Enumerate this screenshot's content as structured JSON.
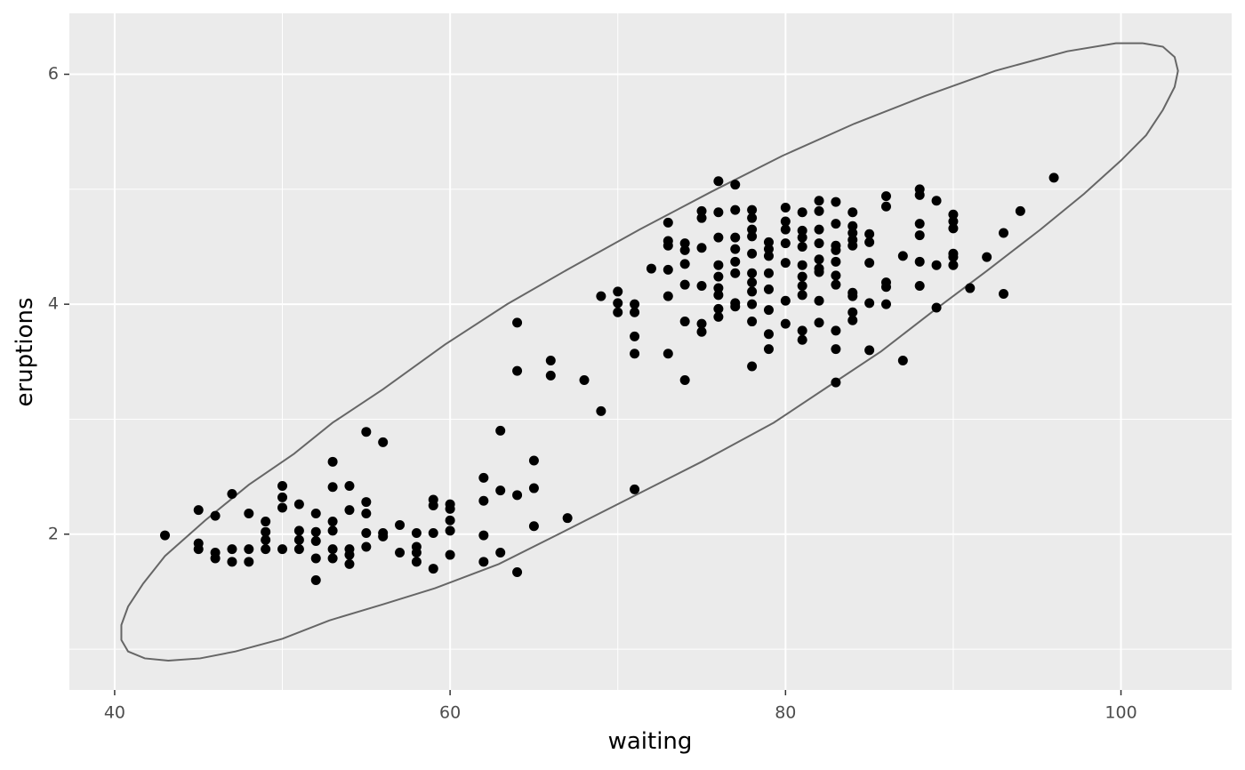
{
  "chart_data": {
    "type": "scatter",
    "x_label": "waiting",
    "y_label": "eruptions",
    "xlim": [
      37.3,
      106.6
    ],
    "ylim": [
      0.645,
      6.53
    ],
    "xticks": [
      40,
      60,
      80,
      100
    ],
    "yticks": [
      2,
      4,
      6
    ],
    "minor_xticks": [
      50,
      70,
      90
    ],
    "minor_yticks": [
      1,
      3,
      5
    ],
    "grid": true,
    "color": "#000000",
    "x": [
      43,
      45,
      45,
      45,
      46,
      46,
      46,
      47,
      47,
      47,
      48,
      48,
      48,
      49,
      49,
      49,
      49,
      50,
      50,
      50,
      50,
      51,
      51,
      51,
      51,
      52,
      52,
      52,
      52,
      52,
      53,
      53,
      53,
      53,
      53,
      53,
      54,
      54,
      54,
      54,
      54,
      55,
      55,
      55,
      55,
      55,
      56,
      56,
      56,
      57,
      57,
      58,
      58,
      58,
      58,
      59,
      59,
      59,
      59,
      60,
      60,
      60,
      60,
      60,
      62,
      62,
      62,
      62,
      63,
      63,
      63,
      64,
      64,
      64,
      64,
      65,
      65,
      65,
      66,
      66,
      67,
      68,
      69,
      69,
      70,
      70,
      70,
      71,
      71,
      71,
      71,
      71,
      72,
      73,
      73,
      73,
      73,
      73,
      73,
      74,
      74,
      74,
      74,
      74,
      74,
      75,
      75,
      75,
      75,
      75,
      75,
      76,
      76,
      76,
      76,
      76,
      76,
      76,
      76,
      76,
      77,
      77,
      77,
      77,
      77,
      77,
      77,
      77,
      78,
      78,
      78,
      78,
      78,
      78,
      78,
      78,
      78,
      78,
      78,
      79,
      79,
      79,
      79,
      79,
      79,
      79,
      79,
      80,
      80,
      80,
      80,
      80,
      80,
      80,
      81,
      81,
      81,
      81,
      81,
      81,
      81,
      81,
      81,
      81,
      82,
      82,
      82,
      82,
      82,
      82,
      82,
      82,
      82,
      83,
      83,
      83,
      83,
      83,
      83,
      83,
      83,
      83,
      83,
      84,
      84,
      84,
      84,
      84,
      84,
      84,
      84,
      84,
      85,
      85,
      85,
      85,
      85,
      86,
      86,
      86,
      86,
      86,
      87,
      87,
      88,
      88,
      88,
      88,
      88,
      88,
      89,
      89,
      89,
      90,
      90,
      90,
      90,
      90,
      90,
      91,
      92,
      93,
      93,
      94,
      96
    ],
    "y": [
      1.99,
      2.21,
      1.92,
      1.87,
      2.16,
      1.84,
      1.79,
      2.35,
      1.87,
      1.76,
      2.18,
      1.87,
      1.76,
      2.11,
      2.02,
      1.95,
      1.87,
      2.42,
      2.32,
      2.23,
      1.87,
      2.26,
      2.03,
      1.95,
      1.87,
      2.18,
      2.02,
      1.94,
      1.79,
      1.6,
      2.63,
      2.41,
      2.11,
      2.03,
      1.87,
      1.79,
      2.42,
      2.21,
      1.87,
      1.82,
      1.74,
      2.89,
      2.28,
      2.18,
      2.01,
      1.89,
      2.8,
      2.01,
      1.98,
      2.08,
      1.84,
      2.01,
      1.89,
      1.84,
      1.76,
      2.3,
      2.25,
      2.01,
      1.7,
      2.26,
      2.22,
      2.12,
      2.03,
      1.82,
      2.49,
      2.29,
      1.99,
      1.76,
      2.9,
      2.38,
      1.84,
      3.84,
      3.42,
      2.34,
      1.67,
      2.64,
      2.4,
      2.07,
      3.51,
      3.38,
      2.14,
      3.34,
      4.07,
      3.07,
      4.11,
      4.01,
      3.93,
      4.0,
      3.93,
      3.72,
      3.57,
      2.39,
      4.31,
      4.71,
      4.55,
      4.51,
      4.3,
      4.07,
      3.57,
      4.53,
      4.47,
      4.35,
      4.17,
      3.85,
      3.34,
      4.81,
      4.75,
      4.49,
      4.16,
      3.83,
      3.76,
      5.07,
      4.8,
      4.58,
      4.34,
      4.24,
      4.14,
      4.08,
      3.96,
      3.89,
      5.04,
      4.82,
      4.58,
      4.48,
      4.37,
      4.27,
      4.01,
      3.98,
      4.82,
      4.75,
      4.65,
      4.59,
      4.44,
      4.27,
      4.19,
      4.11,
      4.0,
      3.85,
      3.46,
      4.54,
      4.48,
      4.42,
      4.27,
      4.13,
      3.95,
      3.74,
      3.61,
      4.84,
      4.72,
      4.65,
      4.53,
      4.36,
      4.03,
      3.83,
      4.8,
      4.64,
      4.58,
      4.5,
      4.34,
      4.24,
      4.16,
      4.08,
      3.77,
      3.69,
      4.9,
      4.81,
      4.65,
      4.53,
      4.39,
      4.31,
      4.28,
      4.03,
      3.84,
      4.89,
      4.7,
      4.51,
      4.47,
      4.37,
      4.25,
      4.17,
      3.77,
      3.61,
      3.32,
      4.8,
      4.68,
      4.62,
      4.56,
      4.51,
      4.1,
      4.07,
      3.93,
      3.86,
      4.61,
      4.54,
      4.36,
      4.01,
      3.6,
      4.94,
      4.85,
      4.19,
      4.15,
      4.0,
      4.42,
      3.51,
      5.0,
      4.95,
      4.7,
      4.6,
      4.37,
      4.16,
      4.9,
      4.34,
      3.97,
      4.78,
      4.72,
      4.66,
      4.44,
      4.41,
      4.34,
      4.14,
      4.41,
      4.62,
      4.09,
      4.81,
      5.1
    ],
    "ellipse": {
      "color": "#666666",
      "x": [
        101.3,
        102.5,
        103.2,
        103.4,
        103.2,
        102.5,
        101.5,
        100.0,
        97.8,
        95.2,
        92.0,
        88.8,
        85.7,
        82.5,
        79.3,
        75.0,
        70.8,
        66.6,
        62.9,
        59.1,
        56.0,
        52.8,
        50.0,
        47.2,
        45.1,
        43.2,
        41.8,
        40.8,
        40.4,
        40.4,
        40.8,
        41.7,
        43.0,
        45.4,
        48.0,
        50.7,
        53.0,
        56.0,
        59.7,
        63.4,
        67.1,
        71.3,
        75.6,
        79.8,
        84.1,
        88.3,
        92.5,
        96.8,
        99.7,
        101.3
      ],
      "y": [
        6.27,
        6.24,
        6.15,
        6.03,
        5.89,
        5.69,
        5.47,
        5.25,
        4.96,
        4.65,
        4.29,
        3.94,
        3.59,
        3.28,
        2.97,
        2.63,
        2.32,
        2.01,
        1.74,
        1.53,
        1.39,
        1.25,
        1.09,
        0.98,
        0.92,
        0.9,
        0.92,
        0.98,
        1.08,
        1.21,
        1.37,
        1.57,
        1.81,
        2.12,
        2.43,
        2.7,
        2.97,
        3.26,
        3.65,
        4.0,
        4.31,
        4.65,
        4.98,
        5.29,
        5.57,
        5.81,
        6.03,
        6.2,
        6.27,
        6.27
      ]
    }
  }
}
